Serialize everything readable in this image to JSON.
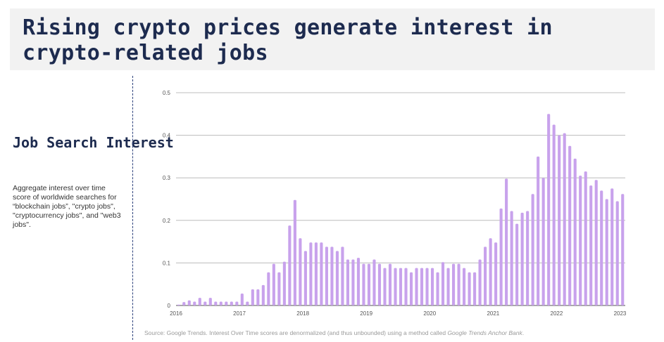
{
  "header": {
    "title": "Rising crypto prices generate interest in crypto-related jobs"
  },
  "sidebar": {
    "heading": "Job Search Interest",
    "description": "Aggregate interest over time score of worldwide searches for “blockchain jobs”, \"crypto jobs\", \"cryptocurrency jobs\", and \"web3 jobs\"."
  },
  "footer": {
    "source_prefix": "Source: Google Trends. Interest Over Time scores are denormalized (and thus unbounded) using a method called ",
    "source_method": "Google Trends Anchor Bank",
    "source_suffix": "."
  },
  "chart_data": {
    "type": "bar",
    "title": "",
    "xlabel": "",
    "ylabel": "",
    "ylim": [
      0,
      0.5
    ],
    "yticks": [
      0,
      0.1,
      0.2,
      0.3,
      0.4,
      0.5
    ],
    "ytick_labels": [
      "0",
      "0.1",
      "0.2",
      "0.3",
      "0.4",
      "0.5"
    ],
    "xticks": [
      "2016",
      "2017",
      "2018",
      "2019",
      "2020",
      "2021",
      "2022",
      "2023"
    ],
    "grid": true,
    "legend": "none",
    "bar_color": "#c8a2ec",
    "start": "2016-01",
    "frequency": "monthly",
    "values": [
      0.002,
      0.008,
      0.012,
      0.009,
      0.018,
      0.009,
      0.018,
      0.009,
      0.009,
      0.009,
      0.009,
      0.009,
      0.028,
      0.009,
      0.038,
      0.038,
      0.048,
      0.078,
      0.098,
      0.078,
      0.103,
      0.188,
      0.248,
      0.158,
      0.128,
      0.148,
      0.148,
      0.148,
      0.138,
      0.138,
      0.128,
      0.138,
      0.108,
      0.108,
      0.112,
      0.098,
      0.098,
      0.108,
      0.098,
      0.088,
      0.098,
      0.088,
      0.088,
      0.088,
      0.078,
      0.088,
      0.088,
      0.088,
      0.088,
      0.078,
      0.102,
      0.088,
      0.098,
      0.098,
      0.088,
      0.078,
      0.078,
      0.108,
      0.138,
      0.158,
      0.148,
      0.228,
      0.298,
      0.222,
      0.192,
      0.218,
      0.222,
      0.262,
      0.35,
      0.3,
      0.45,
      0.425,
      0.4,
      0.405,
      0.375,
      0.345,
      0.305,
      0.315,
      0.282,
      0.295,
      0.27,
      0.25,
      0.275,
      0.245,
      0.262
    ]
  }
}
